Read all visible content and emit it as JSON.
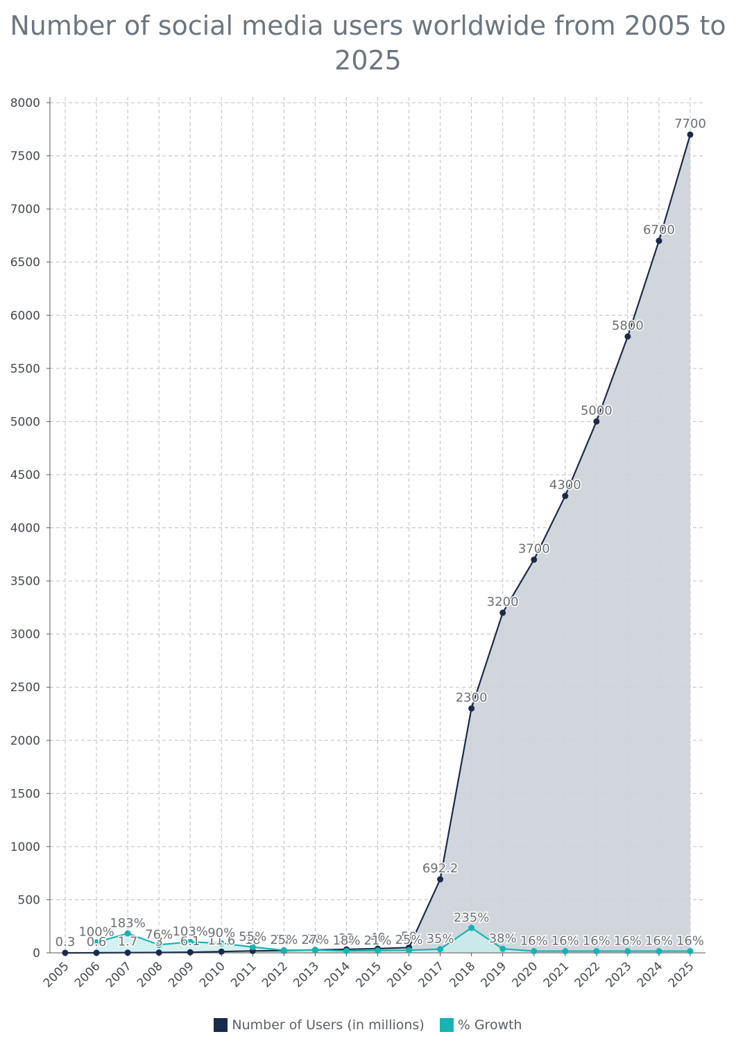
{
  "chart_data": {
    "type": "line",
    "title": "Number of social media users worldwide from 2005 to 2025",
    "categories": [
      "2005",
      "2006",
      "2007",
      "2008",
      "2009",
      "2010",
      "2011",
      "2012",
      "2013",
      "2014",
      "2015",
      "2016",
      "2017",
      "2018",
      "2019",
      "2020",
      "2021",
      "2022",
      "2023",
      "2024",
      "2025"
    ],
    "series": [
      {
        "name": "Number of Users (in millions)",
        "color": "#1b2a4a",
        "fill": "#ccd1d9",
        "values": [
          0.3,
          0.6,
          1.7,
          3,
          6.1,
          11.6,
          18,
          22,
          28,
          33,
          40,
          50,
          692.2,
          2300,
          3200,
          3700,
          4300,
          5000,
          5800,
          6700,
          7700
        ],
        "labels": [
          "0.3",
          "0.6",
          "1.7",
          "3",
          "6.1",
          "11.6",
          "18",
          "22",
          "28",
          "33",
          "40",
          "50",
          "692.2",
          "2300",
          "3200",
          "3700",
          "4300",
          "5000",
          "5800",
          "6700",
          "7700"
        ]
      },
      {
        "name": "% Growth",
        "color": "#17b3b3",
        "fill": "#c9eeee",
        "values": [
          null,
          100,
          183,
          76,
          103,
          90,
          55,
          25,
          27,
          18,
          21,
          25,
          35,
          235,
          38,
          16,
          16,
          16,
          16,
          16,
          16
        ],
        "labels": [
          "",
          "100%",
          "183%",
          "76%",
          "103%",
          "90%",
          "55%",
          "25%",
          "27%",
          "18%",
          "21%",
          "25%",
          "35%",
          "235%",
          "38%",
          "16%",
          "16%",
          "16%",
          "16%",
          "16%",
          "16%"
        ]
      }
    ],
    "yticks": [
      0,
      500,
      1000,
      1500,
      2000,
      2500,
      3000,
      3500,
      4000,
      4500,
      5000,
      5500,
      6000,
      6500,
      7000,
      7500,
      8000
    ],
    "ylim": [
      0,
      8000
    ],
    "grid": true,
    "legend_position": "bottom-center"
  }
}
